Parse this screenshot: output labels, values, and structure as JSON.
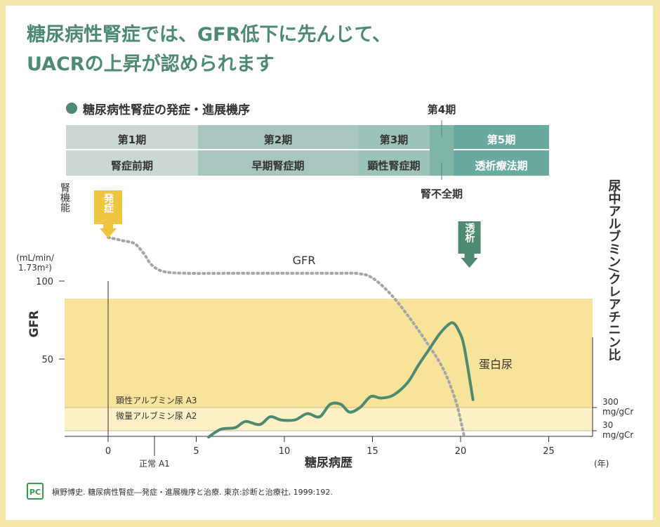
{
  "headline": {
    "line1": "糖尿病性腎症では、GFR低下に先んじて、",
    "line2": "UACRの上昇が認められます"
  },
  "section": {
    "title": "糖尿病性腎症の発症・進展機序"
  },
  "stages": [
    {
      "period": "第1期",
      "name": "腎症前期",
      "color": "#ccd7d4"
    },
    {
      "period": "第2期",
      "name": "早期腎症期",
      "color": "#a9c5bf"
    },
    {
      "period": "第3期",
      "name": "顕性腎症期",
      "color": "#9cc3ba"
    },
    {
      "period": "第4期",
      "name": "腎不全期",
      "color": "#7fb5a6"
    },
    {
      "period": "第5期",
      "name": "透析療法期",
      "color": "#6aaa9e"
    }
  ],
  "chart_data": {
    "type": "line",
    "xlabel": "糖尿病歴",
    "x_ticks": [
      0,
      5,
      10,
      15,
      20,
      25
    ],
    "x_unit": "(年)",
    "xlim": [
      -2.5,
      27
    ],
    "left_axis": {
      "label_top": "腎機能",
      "label": "GFR",
      "unit_line1": "(mL/min/",
      "unit_line2": "1.73m²)",
      "ticks": [
        50,
        100
      ],
      "ylim": [
        0,
        130
      ]
    },
    "right_axis": {
      "label": "尿中アルブミン/クレアチニン比",
      "ticks": [
        {
          "value": "300",
          "unit": "mg/gCr"
        },
        {
          "value": "30",
          "unit": "mg/gCr"
        }
      ]
    },
    "bands": [
      {
        "label": "顕性アルブミン尿 A3",
        "color": "#f8e39a"
      },
      {
        "label": "微量アルブミン尿 A2",
        "color": "#fcf1c6"
      }
    ],
    "normal_label": "正常 A1",
    "series": [
      {
        "name": "GFR",
        "style": "dotted",
        "color": "#a3a5a7",
        "x": [
          0,
          0.8,
          1.5,
          2,
          2.5,
          3.2,
          4.5,
          7,
          10,
          13,
          14.2,
          15,
          16,
          17,
          18,
          19,
          19.7,
          20.1,
          20.2
        ],
        "y": [
          128,
          126,
          124,
          118,
          110,
          106,
          105,
          105,
          105,
          105,
          104.8,
          102,
          92,
          78,
          62,
          44,
          24,
          6,
          0
        ]
      },
      {
        "name": "蛋白尿",
        "style": "solid",
        "color": "#4e8a72",
        "x": [
          5.7,
          6.4,
          7.2,
          7.8,
          8.6,
          9.2,
          9.8,
          10.6,
          11.3,
          12,
          12.6,
          13.2,
          13.7,
          14.3,
          14.9,
          15.5,
          16.2,
          17,
          17.6,
          18.2,
          18.8,
          19.3,
          19.6,
          19.9,
          20.2,
          20.7
        ],
        "y": [
          0,
          5,
          6,
          10,
          8,
          13,
          11,
          11,
          15,
          13,
          21,
          21,
          16,
          19,
          26,
          25,
          27,
          35,
          46,
          56,
          66,
          72,
          73,
          68,
          58,
          24
        ]
      }
    ],
    "annotations": [
      {
        "label": "発症",
        "at_x": 0,
        "color": "#efc43f"
      },
      {
        "label": "透析",
        "at_x": 20.5,
        "color": "#4e8a72"
      }
    ]
  },
  "citation": {
    "logo_text": "PC",
    "text": "槇野博史. 糖尿病性腎症―発症・進展機序と治療. 東京:診断と治療社, 1999:192."
  }
}
